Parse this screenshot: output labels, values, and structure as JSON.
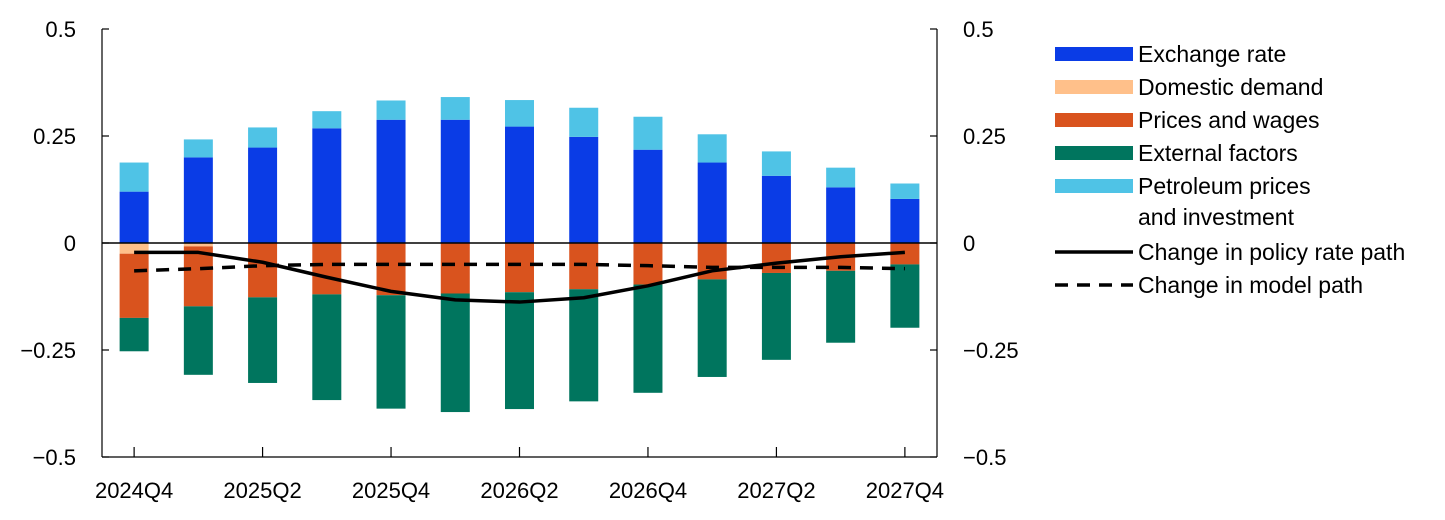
{
  "chart_data": {
    "type": "bar",
    "stacked": true,
    "categories": [
      "2024Q4",
      "2025Q1",
      "2025Q2",
      "2025Q3",
      "2025Q4",
      "2026Q1",
      "2026Q2",
      "2026Q3",
      "2026Q4",
      "2027Q1",
      "2027Q2",
      "2027Q3",
      "2027Q4"
    ],
    "x_tick_labels": [
      "2024Q4",
      "2025Q2",
      "2025Q4",
      "2026Q2",
      "2026Q4",
      "2027Q2",
      "2027Q4"
    ],
    "ylim": [
      -0.5,
      0.5
    ],
    "y_ticks": [
      0.5,
      0.25,
      0,
      -0.25,
      -0.5
    ],
    "y_tick_labels": [
      "0.5",
      "0.25",
      "0",
      "−0.25",
      "−0.5"
    ],
    "y_tick_labels_right": [
      "0.5",
      "0.25",
      "0",
      "−0.25",
      "−0.5"
    ],
    "zero_line": true,
    "grid": false,
    "legend_position": "right",
    "series": [
      {
        "name": "Exchange rate",
        "color": "#0a3ce6",
        "values": [
          0.12,
          0.2,
          0.223,
          0.268,
          0.288,
          0.288,
          0.272,
          0.248,
          0.218,
          0.188,
          0.157,
          0.13,
          0.103
        ]
      },
      {
        "name": "Domestic demand",
        "color": "#ffc08a",
        "values": [
          -0.025,
          -0.008,
          0,
          0,
          0,
          0,
          0,
          0,
          0,
          0,
          0,
          0,
          0
        ]
      },
      {
        "name": "Prices and wages",
        "color": "#d9531e",
        "values": [
          -0.15,
          -0.14,
          -0.127,
          -0.12,
          -0.122,
          -0.118,
          -0.115,
          -0.108,
          -0.097,
          -0.085,
          -0.07,
          -0.065,
          -0.05
        ]
      },
      {
        "name": "External factors",
        "color": "#00755e",
        "values": [
          -0.078,
          -0.16,
          -0.2,
          -0.247,
          -0.265,
          -0.277,
          -0.273,
          -0.262,
          -0.253,
          -0.228,
          -0.203,
          -0.168,
          -0.148
        ]
      },
      {
        "name": "Petroleum prices and investment",
        "label_lines": [
          "Petroleum prices",
          "and investment"
        ],
        "color": "#4fc3e6",
        "values": [
          0.068,
          0.042,
          0.047,
          0.04,
          0.045,
          0.053,
          0.062,
          0.068,
          0.077,
          0.066,
          0.057,
          0.046,
          0.036
        ]
      }
    ],
    "lines": [
      {
        "name": "Change in policy rate path",
        "style": "solid",
        "color": "#000000",
        "values": [
          -0.022,
          -0.022,
          -0.045,
          -0.08,
          -0.113,
          -0.133,
          -0.138,
          -0.128,
          -0.1,
          -0.065,
          -0.047,
          -0.032,
          -0.022
        ]
      },
      {
        "name": "Change in model path",
        "style": "dashed",
        "color": "#000000",
        "values": [
          -0.065,
          -0.06,
          -0.053,
          -0.05,
          -0.05,
          -0.05,
          -0.05,
          -0.05,
          -0.053,
          -0.057,
          -0.057,
          -0.057,
          -0.06
        ]
      }
    ]
  }
}
